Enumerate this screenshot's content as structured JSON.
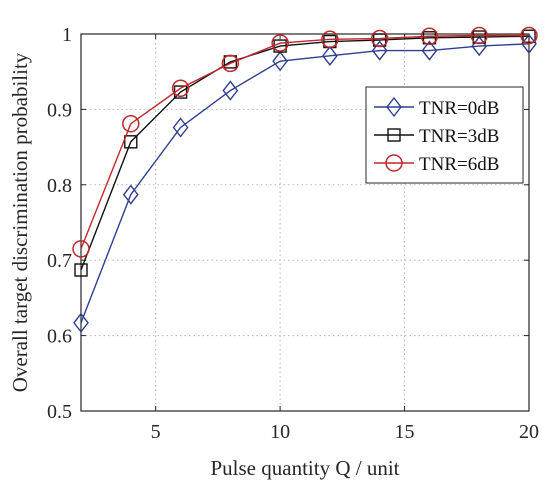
{
  "chart_data": {
    "type": "line",
    "title": "",
    "xlabel": "Pulse quantity Q / unit",
    "ylabel": "Overall target discrimination probability",
    "xlim": [
      2,
      20
    ],
    "ylim": [
      0.5,
      1
    ],
    "xticks": [
      5,
      10,
      15,
      20
    ],
    "yticks": [
      0.5,
      0.6,
      0.7,
      0.8,
      0.9,
      1
    ],
    "xtick_labels": [
      "5",
      "10",
      "15",
      "20"
    ],
    "ytick_labels": [
      "0.5",
      "0.6",
      "0.7",
      "0.8",
      "0.9",
      "1"
    ],
    "grid": true,
    "legend_position": "right, upper-middle",
    "x": [
      2,
      4,
      6,
      8,
      10,
      12,
      14,
      16,
      18,
      20
    ],
    "series": [
      {
        "name": "TNR=0dB",
        "marker": "diamond",
        "color": "#2e3f91",
        "values": [
          0.617,
          0.787,
          0.876,
          0.925,
          0.964,
          0.971,
          0.978,
          0.978,
          0.984,
          0.987
        ]
      },
      {
        "name": "TNR=3dB",
        "marker": "square",
        "color": "#111111",
        "values": [
          0.687,
          0.857,
          0.923,
          0.963,
          0.984,
          0.99,
          0.992,
          0.995,
          0.996,
          0.997
        ]
      },
      {
        "name": "TNR=6dB",
        "marker": "circle",
        "color": "#c0282a",
        "values": [
          0.715,
          0.881,
          0.928,
          0.961,
          0.988,
          0.993,
          0.994,
          0.997,
          0.998,
          0.998
        ]
      }
    ]
  }
}
